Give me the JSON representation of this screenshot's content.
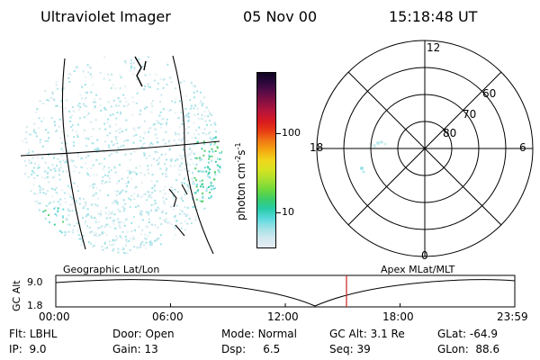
{
  "header": {
    "title": "Ultraviolet Imager",
    "date": "05 Nov 00",
    "time": "15:18:48 UT"
  },
  "geo_map": {
    "label": "Geographic Lat/Lon"
  },
  "colorbar": {
    "unit_label": "photon cm",
    "unit_sup1": "-2",
    "unit_mid": "s",
    "unit_sup2": "-1",
    "tick_100": "100",
    "tick_10": "10",
    "colors": [
      "#e8ecf4",
      "#cfe8ee",
      "#9fe2e6",
      "#58d8dc",
      "#28cca8",
      "#3ccc66",
      "#70d83a",
      "#a8e030",
      "#d6e220",
      "#f0d61c",
      "#f4a810",
      "#f07814",
      "#e83c14",
      "#d81a1e",
      "#b8143c",
      "#8a1040",
      "#5a0c48",
      "#2c083c",
      "#100420"
    ],
    "scale": "log"
  },
  "polar_plot": {
    "label": "Apex MLat/MLT",
    "mlt_labels": {
      "top": "12",
      "right": "6",
      "bottom": "0",
      "left": "18"
    },
    "lat_labels": [
      "60",
      "70",
      "80"
    ]
  },
  "timeline": {
    "y_axis_label": "GC Alt",
    "y_ticks": [
      "9.0",
      "1.8"
    ],
    "x_ticks": [
      "00:00",
      "06:00",
      "12:00",
      "18:00",
      "23:59"
    ],
    "current_time_marker_color": "#cc2222"
  },
  "info": {
    "filter_label": "Flt:",
    "filter_value": "LBHL",
    "ip_label": "IP:",
    "ip_value": "9.0",
    "door_label": "Door:",
    "door_value": "Open",
    "gain_label": "Gain:",
    "gain_value": "13",
    "mode_label": "Mode:",
    "mode_value": "Normal",
    "dsp_label": "Dsp:",
    "dsp_value": "6.5",
    "gcalt_label": "GC Alt:",
    "gcalt_value": "3.1 Re",
    "seq_label": "Seq:",
    "seq_value": "39",
    "glat_label": "GLat:",
    "glat_value": "-64.9",
    "glon_label": "GLon:",
    "glon_value": "88.6"
  }
}
